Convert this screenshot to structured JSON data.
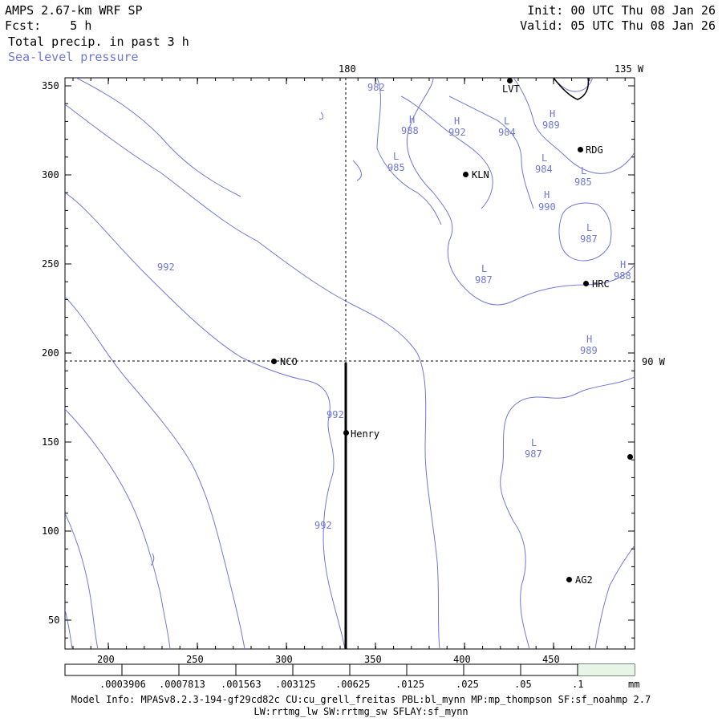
{
  "header": {
    "model_title": "AMPS 2.67-km WRF SP",
    "init": "Init: 00 UTC Thu 08 Jan 26",
    "forecast": "Fcst:    5 h",
    "valid": "Valid: 05 UTC Thu 08 Jan 26",
    "field1": "Total precip. in past 3 h",
    "field2": "Sea-level pressure"
  },
  "axes": {
    "x_ticks": [
      "200",
      "250",
      "300",
      "350",
      "400",
      "450"
    ],
    "y_ticks": [
      "350",
      "300",
      "250",
      "200",
      "150",
      "100",
      "50"
    ],
    "meridian_top": "180",
    "corner_lon": "135 W",
    "parallel_right": "90 W"
  },
  "stations": [
    "LVT",
    "RDG",
    "KLN",
    "HRC",
    "NCO",
    "Henry",
    "AG2"
  ],
  "contour_labels": [
    {
      "text": "982"
    },
    {
      "text": "988",
      "prefix": "H"
    },
    {
      "text": "992",
      "prefix": "H"
    },
    {
      "text": "984",
      "prefix": "L"
    },
    {
      "text": "989",
      "prefix": "H"
    },
    {
      "text": "985",
      "prefix": "L"
    },
    {
      "text": "984",
      "prefix": "L"
    },
    {
      "text": "985",
      "prefix": "L"
    },
    {
      "text": "990",
      "prefix": "H"
    },
    {
      "text": "987",
      "prefix": "L"
    },
    {
      "text": "987",
      "prefix": "L"
    },
    {
      "text": "988",
      "prefix": "H"
    },
    {
      "text": "989",
      "prefix": "H"
    },
    {
      "text": "992"
    },
    {
      "text": "992"
    },
    {
      "text": "992"
    },
    {
      "text": "987",
      "prefix": "L"
    }
  ],
  "colorbar": {
    "labels": [
      ".0003906",
      ".0007813",
      ".001563",
      ".003125",
      ".00625",
      ".0125",
      ".025",
      ".05",
      ".1"
    ],
    "units": "mm"
  },
  "footer": {
    "line1": "Model Info: MPASv8.2.3-194-gf29cd82c CU:cu_grell_freitas PBL:bl_mynn MP:mp_thompson SF:sf_noahmp 2.7",
    "line2": "LW:rrtmg_lw SW:rrtmg_sw SFLAY:sf_mynn"
  },
  "colors": {
    "contour": "#6f78d8",
    "precip_box": "#e6f5e6",
    "frame": "#000000"
  }
}
